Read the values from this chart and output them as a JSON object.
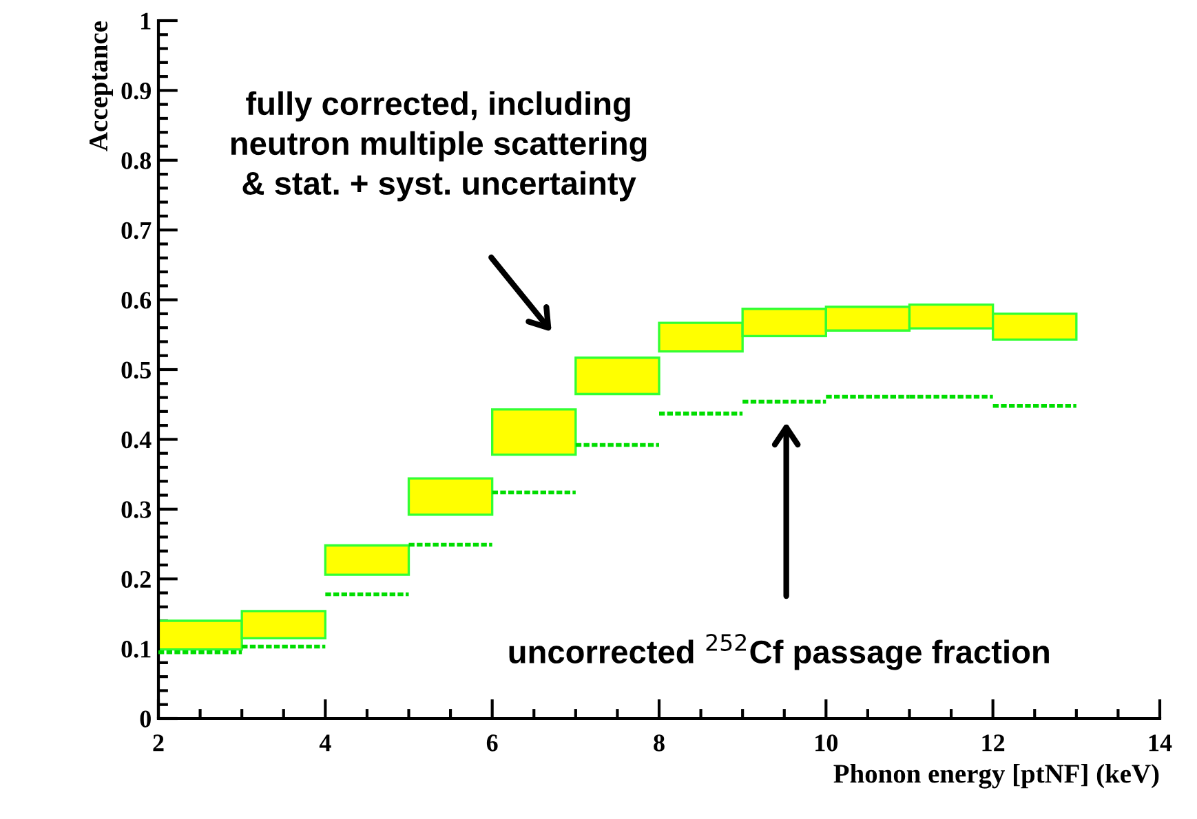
{
  "chart_data": {
    "type": "bar",
    "xlabel": "Phonon energy [ptNF] (keV)",
    "ylabel": "Acceptance",
    "x": [
      2.5,
      3.5,
      4.5,
      5.5,
      6.5,
      7.5,
      8.5,
      9.5,
      10.5,
      11.5,
      12.5
    ],
    "series": [
      {
        "color": "#ffff00",
        "base": [
          0.099,
          0.115,
          0.206,
          0.292,
          0.378,
          0.465,
          0.526,
          0.548,
          0.556,
          0.559,
          0.543
        ],
        "values": [
          0.041,
          0.039,
          0.042,
          0.052,
          0.065,
          0.052,
          0.041,
          0.039,
          0.034,
          0.034,
          0.037
        ]
      },
      {
        "type": "step",
        "color": "#00dd00",
        "line_style": "dotted",
        "x": [
          2,
          3,
          4,
          5,
          6,
          7,
          8,
          9,
          10,
          11,
          12,
          13
        ],
        "values": [
          0.095,
          0.103,
          0.178,
          0.249,
          0.324,
          0.392,
          0.437,
          0.454,
          0.461,
          0.461,
          0.448,
          0.448
        ]
      }
    ],
    "xlim": [
      2,
      14
    ],
    "xticks": [
      2,
      4,
      6,
      8,
      10,
      12,
      14
    ],
    "ylim": [
      0,
      1
    ],
    "yticks": [
      0,
      0.1,
      0.2,
      0.3,
      0.4,
      0.5,
      0.6,
      0.7,
      0.8,
      0.9,
      1
    ],
    "grid": false,
    "legend": false,
    "annotations": [
      "fully corrected, including\nneutron multiple scattering\n& stat. + syst. uncertainty",
      "uncorrected $^{252}$Cf passage fraction"
    ]
  }
}
